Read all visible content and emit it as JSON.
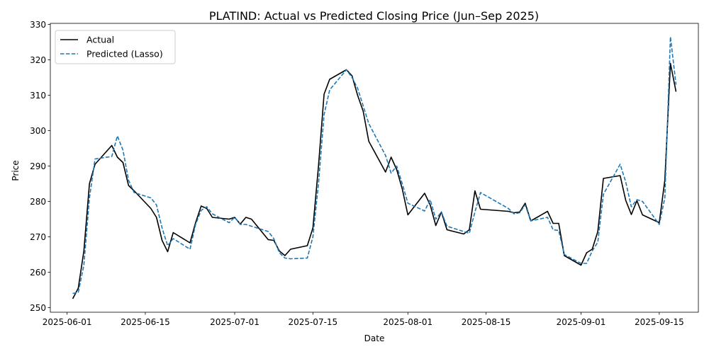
{
  "chart_data": {
    "type": "line",
    "title": "PLATIND: Actual vs Predicted Closing Price (Jun–Sep 2025)",
    "xlabel": "Date",
    "ylabel": "Price",
    "ylim": [
      248.7,
      330.3
    ],
    "xlim": [
      "2025-05-29",
      "2025-09-22"
    ],
    "x_ticks": [
      "2025-06-01",
      "2025-06-15",
      "2025-07-01",
      "2025-07-15",
      "2025-08-01",
      "2025-08-15",
      "2025-09-01",
      "2025-09-15"
    ],
    "y_ticks": [
      250,
      260,
      270,
      280,
      290,
      300,
      310,
      320,
      330
    ],
    "grid": false,
    "legend_position": "top-left",
    "series": [
      {
        "name": "Actual",
        "color": "#000000",
        "style": "solid",
        "points": [
          [
            "2025-06-02",
            252.5
          ],
          [
            "2025-06-03",
            255.5
          ],
          [
            "2025-06-04",
            266.0
          ],
          [
            "2025-06-05",
            285.0
          ],
          [
            "2025-06-06",
            290.5
          ],
          [
            "2025-06-09",
            295.8
          ],
          [
            "2025-06-10",
            292.5
          ],
          [
            "2025-06-11",
            291.0
          ],
          [
            "2025-06-12",
            284.5
          ],
          [
            "2025-06-13",
            283.0
          ],
          [
            "2025-06-16",
            278.0
          ],
          [
            "2025-06-17",
            275.5
          ],
          [
            "2025-06-18",
            269.0
          ],
          [
            "2025-06-19",
            265.8
          ],
          [
            "2025-06-20",
            271.2
          ],
          [
            "2025-06-23",
            268.3
          ],
          [
            "2025-06-24",
            274.0
          ],
          [
            "2025-06-25",
            278.7
          ],
          [
            "2025-06-26",
            278.0
          ],
          [
            "2025-06-27",
            275.5
          ],
          [
            "2025-06-30",
            275.0
          ],
          [
            "2025-07-01",
            275.5
          ],
          [
            "2025-07-02",
            273.6
          ],
          [
            "2025-07-03",
            275.5
          ],
          [
            "2025-07-04",
            275.0
          ],
          [
            "2025-07-07",
            269.2
          ],
          [
            "2025-07-08",
            269.0
          ],
          [
            "2025-07-09",
            266.0
          ],
          [
            "2025-07-10",
            264.7
          ],
          [
            "2025-07-11",
            266.5
          ],
          [
            "2025-07-14",
            267.5
          ],
          [
            "2025-07-15",
            272.5
          ],
          [
            "2025-07-16",
            290.0
          ],
          [
            "2025-07-17",
            310.3
          ],
          [
            "2025-07-18",
            314.5
          ],
          [
            "2025-07-21",
            317.2
          ],
          [
            "2025-07-22",
            315.5
          ],
          [
            "2025-07-23",
            310.0
          ],
          [
            "2025-07-24",
            305.5
          ],
          [
            "2025-07-25",
            297.0
          ],
          [
            "2025-07-28",
            288.3
          ],
          [
            "2025-07-29",
            292.5
          ],
          [
            "2025-07-30",
            289.0
          ],
          [
            "2025-07-31",
            283.5
          ],
          [
            "2025-08-01",
            276.2
          ],
          [
            "2025-08-04",
            282.3
          ],
          [
            "2025-08-05",
            279.0
          ],
          [
            "2025-08-06",
            273.2
          ],
          [
            "2025-08-07",
            277.0
          ],
          [
            "2025-08-08",
            272.0
          ],
          [
            "2025-08-11",
            270.8
          ],
          [
            "2025-08-12",
            272.0
          ],
          [
            "2025-08-13",
            283.0
          ],
          [
            "2025-08-14",
            277.8
          ],
          [
            "2025-08-19",
            277.2
          ],
          [
            "2025-08-20",
            276.8
          ],
          [
            "2025-08-21",
            277.0
          ],
          [
            "2025-08-22",
            279.5
          ],
          [
            "2025-08-23",
            274.5
          ],
          [
            "2025-08-26",
            277.2
          ],
          [
            "2025-08-27",
            273.8
          ],
          [
            "2025-08-28",
            273.8
          ],
          [
            "2025-08-29",
            264.7
          ],
          [
            "2025-09-01",
            262.0
          ],
          [
            "2025-09-02",
            265.5
          ],
          [
            "2025-09-03",
            266.5
          ],
          [
            "2025-09-04",
            271.5
          ],
          [
            "2025-09-05",
            286.5
          ],
          [
            "2025-09-08",
            287.3
          ],
          [
            "2025-09-09",
            280.3
          ],
          [
            "2025-09-10",
            276.3
          ],
          [
            "2025-09-11",
            280.2
          ],
          [
            "2025-09-12",
            276.2
          ],
          [
            "2025-09-15",
            274.0
          ],
          [
            "2025-09-16",
            286.0
          ],
          [
            "2025-09-17",
            319.0
          ],
          [
            "2025-09-18",
            311.0
          ]
        ]
      },
      {
        "name": "Predicted (Lasso)",
        "color": "#1f77b4",
        "style": "dashed",
        "points": [
          [
            "2025-06-02",
            254.0
          ],
          [
            "2025-06-03",
            254.3
          ],
          [
            "2025-06-04",
            262.0
          ],
          [
            "2025-06-05",
            281.0
          ],
          [
            "2025-06-06",
            292.0
          ],
          [
            "2025-06-09",
            292.7
          ],
          [
            "2025-06-10",
            298.5
          ],
          [
            "2025-06-11",
            294.5
          ],
          [
            "2025-06-12",
            286.0
          ],
          [
            "2025-06-13",
            282.5
          ],
          [
            "2025-06-16",
            281.0
          ],
          [
            "2025-06-17",
            279.0
          ],
          [
            "2025-06-18",
            272.5
          ],
          [
            "2025-06-19",
            267.5
          ],
          [
            "2025-06-20",
            269.5
          ],
          [
            "2025-06-23",
            266.5
          ],
          [
            "2025-06-24",
            273.5
          ],
          [
            "2025-06-25",
            277.5
          ],
          [
            "2025-06-26",
            278.5
          ],
          [
            "2025-06-27",
            276.5
          ],
          [
            "2025-06-30",
            274.0
          ],
          [
            "2025-07-01",
            275.5
          ],
          [
            "2025-07-02",
            273.5
          ],
          [
            "2025-07-03",
            273.5
          ],
          [
            "2025-07-04",
            273.0
          ],
          [
            "2025-07-07",
            271.5
          ],
          [
            "2025-07-08",
            269.5
          ],
          [
            "2025-07-09",
            265.5
          ],
          [
            "2025-07-10",
            264.0
          ],
          [
            "2025-07-11",
            263.8
          ],
          [
            "2025-07-14",
            264.0
          ],
          [
            "2025-07-15",
            270.0
          ],
          [
            "2025-07-16",
            285.0
          ],
          [
            "2025-07-17",
            304.5
          ],
          [
            "2025-07-18",
            311.5
          ],
          [
            "2025-07-21",
            317.2
          ],
          [
            "2025-07-22",
            315.0
          ],
          [
            "2025-07-23",
            312.0
          ],
          [
            "2025-07-24",
            307.0
          ],
          [
            "2025-07-25",
            302.0
          ],
          [
            "2025-07-28",
            293.0
          ],
          [
            "2025-07-29",
            288.0
          ],
          [
            "2025-07-30",
            290.0
          ],
          [
            "2025-07-31",
            285.0
          ],
          [
            "2025-08-01",
            279.5
          ],
          [
            "2025-08-04",
            277.3
          ],
          [
            "2025-08-05",
            280.5
          ],
          [
            "2025-08-06",
            275.0
          ],
          [
            "2025-08-07",
            277.0
          ],
          [
            "2025-08-08",
            273.0
          ],
          [
            "2025-08-11",
            271.5
          ],
          [
            "2025-08-12",
            271.0
          ],
          [
            "2025-08-13",
            277.0
          ],
          [
            "2025-08-14",
            282.5
          ],
          [
            "2025-08-19",
            278.0
          ],
          [
            "2025-08-20",
            276.5
          ],
          [
            "2025-08-21",
            276.8
          ],
          [
            "2025-08-22",
            279.0
          ],
          [
            "2025-08-23",
            274.5
          ],
          [
            "2025-08-26",
            275.5
          ],
          [
            "2025-08-27",
            272.0
          ],
          [
            "2025-08-28",
            271.8
          ],
          [
            "2025-08-29",
            265.0
          ],
          [
            "2025-09-01",
            262.5
          ],
          [
            "2025-09-02",
            262.5
          ],
          [
            "2025-09-03",
            266.0
          ],
          [
            "2025-09-04",
            268.5
          ],
          [
            "2025-09-05",
            282.0
          ],
          [
            "2025-09-08",
            290.5
          ],
          [
            "2025-09-09",
            285.5
          ],
          [
            "2025-09-10",
            278.5
          ],
          [
            "2025-09-11",
            280.5
          ],
          [
            "2025-09-12",
            280.0
          ],
          [
            "2025-09-15",
            273.5
          ],
          [
            "2025-09-16",
            281.0
          ],
          [
            "2025-09-17",
            326.5
          ],
          [
            "2025-09-18",
            313.0
          ]
        ]
      }
    ]
  }
}
